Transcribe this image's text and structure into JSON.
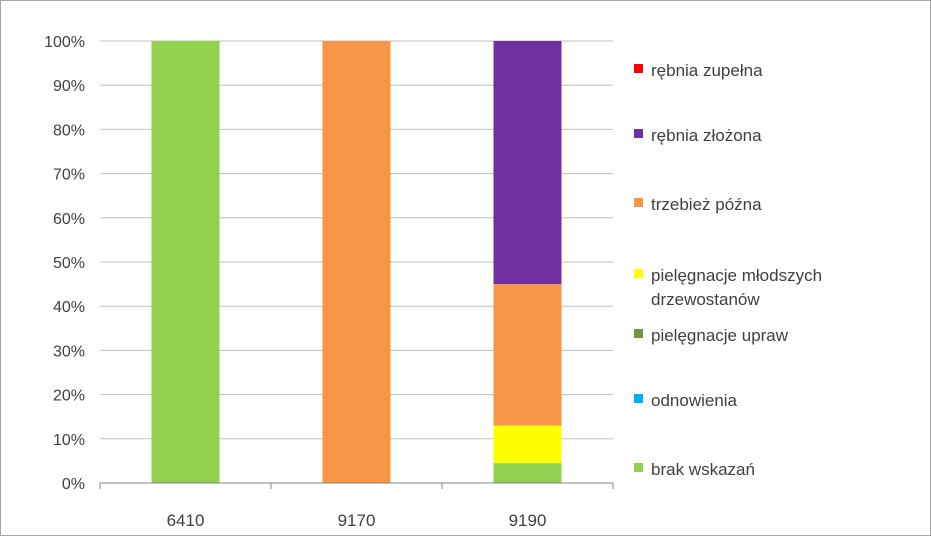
{
  "chart_data": {
    "type": "bar",
    "stacked": true,
    "percent": true,
    "categories": [
      "6410",
      "9170",
      "9190"
    ],
    "ylim": [
      0,
      100
    ],
    "y_ticks": [
      "0%",
      "10%",
      "20%",
      "30%",
      "40%",
      "50%",
      "60%",
      "70%",
      "80%",
      "90%",
      "100%"
    ],
    "grid": "horizontal",
    "legend_position": "right",
    "series": [
      {
        "name": "brak wskazań",
        "color": "#92d050",
        "values": [
          100,
          0,
          4.5
        ]
      },
      {
        "name": "odnowienia",
        "color": "#00b0f0",
        "values": [
          0,
          0,
          0
        ]
      },
      {
        "name": "pielęgnacje upraw",
        "color": "#77933c",
        "values": [
          0,
          0,
          0
        ]
      },
      {
        "name": "pielęgnacje młodszych drzewostanów",
        "legend_lines": [
          "pielęgnacje młodszych",
          "drzewostanów"
        ],
        "color": "#ffff00",
        "values": [
          0,
          0,
          8.5
        ]
      },
      {
        "name": "trzebież późna",
        "color": "#f79646",
        "values": [
          0,
          100,
          32
        ]
      },
      {
        "name": "rębnia złożona",
        "color": "#7030a0",
        "values": [
          0,
          0,
          55
        ]
      },
      {
        "name": "rębnia zupełna",
        "color": "#ff0000",
        "values": [
          0,
          0,
          0
        ]
      }
    ]
  }
}
